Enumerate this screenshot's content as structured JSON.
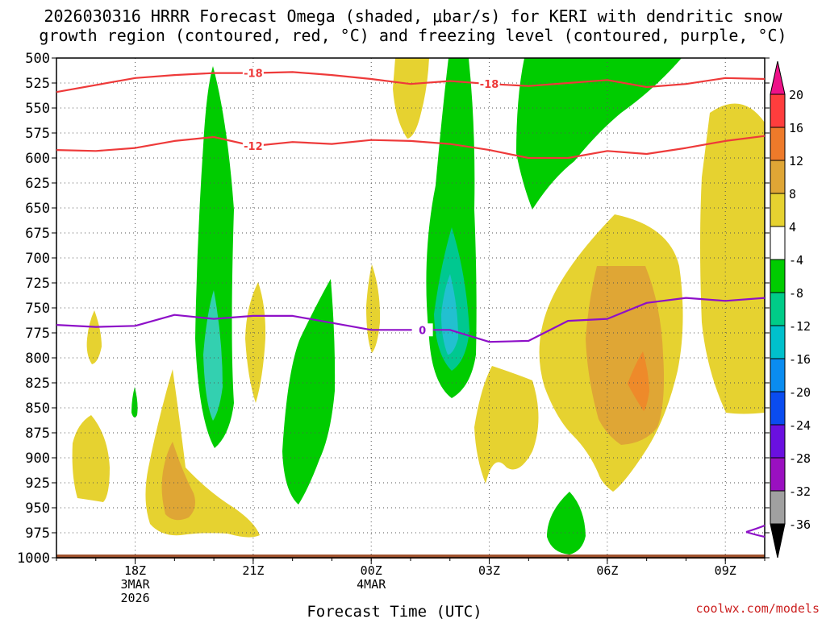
{
  "chart_data": {
    "type": "heatmap",
    "title": "2026030316 HRRR Forecast Omega (shaded, μbar/s) for KERI with dendritic snow growth region (contoured, red, °C) and freezing level (contoured, purple, °C)",
    "title_lines": [
      "2026030316 HRRR Forecast Omega (shaded, μbar/s) for KERI with dendritic snow",
      "growth region (contoured, red, °C) and freezing level (contoured, purple, °C)"
    ],
    "xlabel": "Forecast Time (UTC)",
    "ylabel": "",
    "credit": "coolwx.com/models",
    "x_range_hours": [
      16,
      34
    ],
    "y_range_hPa": [
      1000,
      500
    ],
    "y_ticks": [
      500,
      525,
      550,
      575,
      600,
      625,
      650,
      675,
      700,
      725,
      750,
      775,
      800,
      825,
      850,
      875,
      900,
      925,
      950,
      975,
      1000
    ],
    "x_ticks": [
      {
        "hour": 18,
        "lines": [
          "18Z",
          "3MAR",
          "2026"
        ]
      },
      {
        "hour": 21,
        "lines": [
          "21Z"
        ]
      },
      {
        "hour": 24,
        "lines": [
          "00Z",
          "4MAR"
        ]
      },
      {
        "hour": 27,
        "lines": [
          "03Z"
        ]
      },
      {
        "hour": 30,
        "lines": [
          "06Z"
        ]
      },
      {
        "hour": 33,
        "lines": [
          "09Z"
        ]
      }
    ],
    "grid": true,
    "colorbar": {
      "ticks": [
        "20",
        "16",
        "12",
        "8",
        "4",
        "-4",
        "-8",
        "-12",
        "-16",
        "-20",
        "-24",
        "-28",
        "-32",
        "-36"
      ],
      "colors": [
        "#ff3d3d",
        "#ee7a2a",
        "#dfa635",
        "#e6d230",
        "#ffffff",
        "#00cc00",
        "#00cc88",
        "#00c0cc",
        "#0a8cf0",
        "#0a4cf0",
        "#6a10e0",
        "#9a10c0",
        "#a0a0a0"
      ],
      "top_arrow": "#ee1188",
      "bottom_arrow": "#000000"
    },
    "contours": [
      {
        "name": "dendritic-top",
        "label": "-18",
        "color": "#ee3a3a",
        "points": [
          [
            16,
            534
          ],
          [
            18,
            520
          ],
          [
            19,
            517
          ],
          [
            20,
            515
          ],
          [
            21,
            515
          ],
          [
            22,
            514
          ],
          [
            23,
            517
          ],
          [
            24,
            521
          ],
          [
            25,
            526
          ],
          [
            26,
            523
          ],
          [
            27,
            526
          ],
          [
            28,
            528
          ],
          [
            29,
            525
          ],
          [
            30,
            522
          ],
          [
            31,
            529
          ],
          [
            32,
            526
          ],
          [
            33,
            520
          ],
          [
            34,
            521
          ]
        ]
      },
      {
        "name": "dendritic-bottom",
        "label": "-12",
        "color": "#ee3a3a",
        "points": [
          [
            16,
            592
          ],
          [
            17,
            593
          ],
          [
            18,
            590
          ],
          [
            19,
            583
          ],
          [
            20,
            579
          ],
          [
            21,
            588
          ],
          [
            22,
            584
          ],
          [
            23,
            586
          ],
          [
            24,
            582
          ],
          [
            25,
            583
          ],
          [
            26,
            586
          ],
          [
            27,
            592
          ],
          [
            28,
            600
          ],
          [
            29,
            600
          ],
          [
            30,
            593
          ],
          [
            31,
            596
          ],
          [
            32,
            590
          ],
          [
            33,
            583
          ],
          [
            34,
            578
          ]
        ]
      },
      {
        "name": "freezing-level",
        "label": "0",
        "color": "#8e10c8",
        "points": [
          [
            16,
            767
          ],
          [
            17,
            769
          ],
          [
            18,
            768
          ],
          [
            19,
            757
          ],
          [
            20,
            761
          ],
          [
            21,
            758
          ],
          [
            22,
            758
          ],
          [
            23,
            765
          ],
          [
            24,
            772
          ],
          [
            25,
            772
          ],
          [
            26,
            772
          ],
          [
            27,
            784
          ],
          [
            28,
            783
          ],
          [
            29,
            763
          ],
          [
            30,
            761
          ],
          [
            31,
            745
          ],
          [
            32,
            740
          ],
          [
            33,
            743
          ],
          [
            34,
            740
          ]
        ]
      }
    ]
  }
}
